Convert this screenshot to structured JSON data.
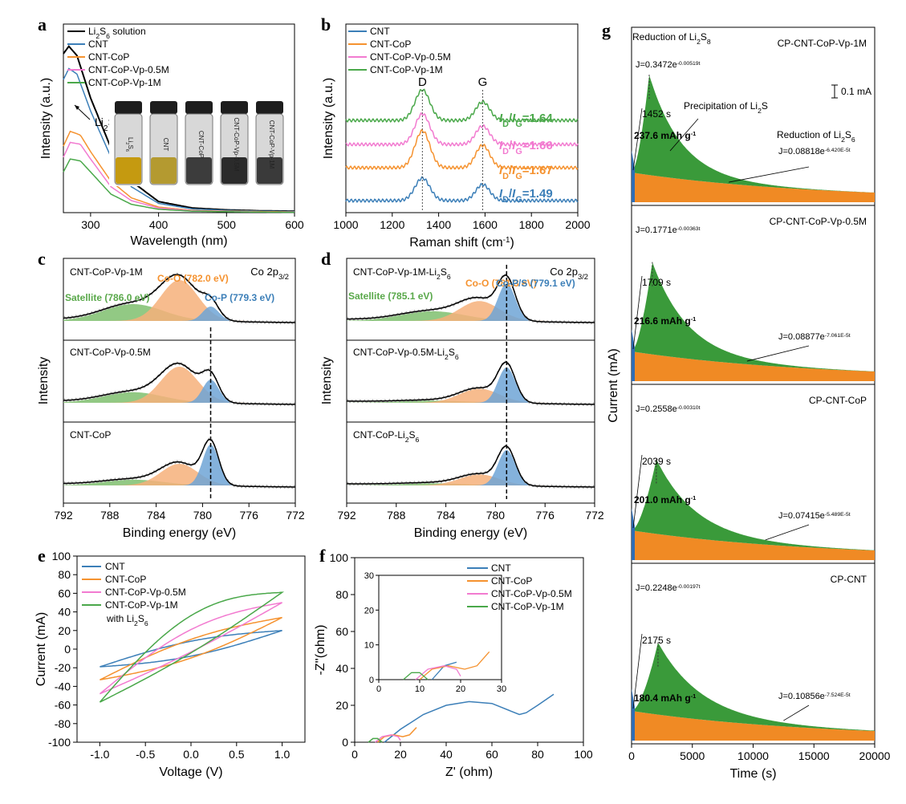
{
  "colors": {
    "black": "#000000",
    "blue": "#3c7fb8",
    "orange": "#f5922f",
    "pink": "#f27bd0",
    "green": "#4aa84a",
    "fill_green": "#3a9a3a",
    "fill_orange": "#f08a24",
    "fill_blue": "#2f6db5",
    "xps_green": "#7fbf6e",
    "xps_orange": "#f6b07a",
    "xps_blue": "#6fa4d6"
  },
  "panels": {
    "a": {
      "letter": "a",
      "xlabel": "Wavelength (nm)",
      "ylabel": "Intensity (a.u.)",
      "xticks": [
        "300",
        "400",
        "500",
        "600"
      ],
      "legend": [
        "Li₂S₆ solution",
        "CNT",
        "CNT-CoP",
        "CNT-CoP-Vp-0.5M",
        "CNT-CoP-Vp-1M"
      ],
      "peak_label": "Li₂S₆",
      "vial_labels": [
        "Li₂S₆",
        "CNT",
        "CNT-CoP",
        "CNT-CoP-Vp-0.5M",
        "CNT-CoP-Vp-1M"
      ]
    },
    "b": {
      "letter": "b",
      "xlabel": "Raman shift (cm⁻¹)",
      "ylabel": "Intensity (a.u.)",
      "xticks": [
        "1000",
        "1200",
        "1400",
        "1600",
        "1800",
        "2000"
      ],
      "legend": [
        "CNT",
        "CNT-CoP",
        "CNT-CoP-Vp-0.5M",
        "CNT-CoP-Vp-1M"
      ],
      "band_D": "D",
      "band_G": "G",
      "ratios": [
        "ID/IG=1.64",
        "ID/IG=1.66",
        "ID/IG=1.67",
        "ID/IG=1.49"
      ]
    },
    "c": {
      "letter": "c",
      "xlabel": "Binding energy (eV)",
      "ylabel": "Intensity",
      "xticks": [
        "792",
        "788",
        "784",
        "780",
        "776",
        "772"
      ],
      "orbital": "Co 2p3/2",
      "samples": [
        "CNT-CoP-Vp-1M",
        "CNT-CoP-Vp-0.5M",
        "CNT-CoP"
      ],
      "peaks": [
        "Satellite (786.0 eV)",
        "Co-O (782.0 eV)",
        "Co-P (779.3 eV)"
      ]
    },
    "d": {
      "letter": "d",
      "xlabel": "Binding energy (eV)",
      "ylabel": "Intensity",
      "xticks": [
        "792",
        "788",
        "784",
        "780",
        "776",
        "772"
      ],
      "orbital": "Co 2p3/2",
      "samples": [
        "CNT-CoP-Vp-1M-Li₂S₆",
        "CNT-CoP-Vp-0.5M-Li₂S₆",
        "CNT-CoP-Li₂S₆"
      ],
      "peaks": [
        "Satellite (785.1 eV)",
        "Co-O (781.3 eV)",
        "Co-P/S (779.1 eV)"
      ]
    },
    "e": {
      "letter": "e",
      "xlabel": "Voltage (V)",
      "ylabel": "Current (mA)",
      "xticks": [
        "-1.0",
        "-0.5",
        "0.0",
        "0.5",
        "1.0"
      ],
      "yticks": [
        "100",
        "80",
        "60",
        "40",
        "20",
        "0",
        "-20",
        "-40",
        "-60",
        "-80",
        "-100"
      ],
      "legend": [
        "CNT",
        "CNT-CoP",
        "CNT-CoP-Vp-0.5M",
        "CNT-CoP-Vp-1M"
      ],
      "note": "with Li₂S₆"
    },
    "f": {
      "letter": "f",
      "xlabel": "Z' (ohm)",
      "ylabel": "-Z''(ohm)",
      "xticks": [
        "0",
        "20",
        "40",
        "60",
        "80",
        "100"
      ],
      "yticks": [
        "100",
        "80",
        "60",
        "40",
        "20",
        "0"
      ],
      "inset_xticks": [
        "0",
        "10",
        "20",
        "30"
      ],
      "inset_yticks": [
        "30",
        "20",
        "10",
        "0"
      ],
      "legend": [
        "CNT",
        "CNT-CoP",
        "CNT-CoP-Vp-0.5M",
        "CNT-CoP-Vp-1M"
      ]
    },
    "g": {
      "letter": "g",
      "xlabel": "Time (s)",
      "ylabel": "Current (mA)",
      "xticks": [
        "0",
        "5000",
        "10000",
        "15000",
        "20000"
      ],
      "scale_bar": "0.1 mA",
      "annot_reduction_s8": "Reduction of Li₂S₈",
      "annot_precip": "Precipitation of Li₂S",
      "annot_reduction_s6": "Reduction of Li₂S₆",
      "subplots": [
        {
          "title": "CP-CNT-CoP-Vp-1M",
          "fit1": "J=0.3472e",
          "fit1_exp": "-0.00519t",
          "time": "1452 s",
          "capacity": "237.6 mAh g",
          "fit2": "J=0.08818e",
          "fit2_exp": "-6.420E-5t"
        },
        {
          "title": "CP-CNT-CoP-Vp-0.5M",
          "fit1": "J=0.1771e",
          "fit1_exp": "-0.00363t",
          "time": "1709 s",
          "capacity": "216.6 mAh g",
          "fit2": "J=0.08877e",
          "fit2_exp": "-7.061E-5t"
        },
        {
          "title": "CP-CNT-CoP",
          "fit1": "J=0.2558e",
          "fit1_exp": "-0.00310t",
          "time": "2039 s",
          "capacity": "201.0 mAh g",
          "fit2": "J=0.07415e",
          "fit2_exp": "-5.489E-5t"
        },
        {
          "title": "CP-CNT",
          "fit1": "J=0.2248e",
          "fit1_exp": "-0.00197t",
          "time": "2175 s",
          "capacity": "180.4 mAh g",
          "fit2": "J=0.10856e",
          "fit2_exp": "-7.524E-5t"
        }
      ],
      "capacity_unit_exp": "-1"
    }
  },
  "chart_data": [
    {
      "panel": "a",
      "type": "line",
      "xlabel": "Wavelength (nm)",
      "ylabel": "Intensity (a.u.)",
      "xlim": [
        260,
        600
      ],
      "series": [
        {
          "name": "Li2S6 solution",
          "x": [
            260,
            268,
            280,
            300,
            330,
            360,
            400,
            450,
            500,
            550,
            600
          ],
          "y": [
            0.86,
            0.9,
            0.85,
            0.62,
            0.35,
            0.17,
            0.06,
            0.025,
            0.015,
            0.01,
            0.008
          ]
        },
        {
          "name": "CNT",
          "x": [
            260,
            268,
            280,
            300,
            330,
            360,
            400,
            450,
            500,
            550,
            600
          ],
          "y": [
            0.72,
            0.78,
            0.75,
            0.55,
            0.3,
            0.14,
            0.05,
            0.02,
            0.012,
            0.008,
            0.006
          ]
        },
        {
          "name": "CNT-CoP",
          "x": [
            260,
            270,
            285,
            300,
            330,
            360,
            400,
            450,
            500,
            550,
            600
          ],
          "y": [
            0.36,
            0.44,
            0.42,
            0.33,
            0.17,
            0.08,
            0.03,
            0.012,
            0.008,
            0.006,
            0.004
          ]
        },
        {
          "name": "CNT-CoP-Vp-0.5M",
          "x": [
            260,
            270,
            285,
            300,
            330,
            360,
            400,
            450,
            500,
            550,
            600
          ],
          "y": [
            0.3,
            0.38,
            0.37,
            0.29,
            0.14,
            0.065,
            0.025,
            0.01,
            0.006,
            0.004,
            0.003
          ]
        },
        {
          "name": "CNT-CoP-Vp-1M",
          "x": [
            260,
            270,
            285,
            300,
            330,
            360,
            400,
            450,
            500,
            550,
            600
          ],
          "y": [
            0.22,
            0.29,
            0.28,
            0.22,
            0.1,
            0.045,
            0.018,
            0.008,
            0.005,
            0.003,
            0.002
          ]
        }
      ]
    },
    {
      "panel": "b",
      "type": "line",
      "xlabel": "Raman shift (cm-1)",
      "ylabel": "Intensity (a.u.)",
      "xlim": [
        1000,
        2000
      ],
      "band_centers": {
        "D": 1330,
        "G": 1590
      },
      "series": [
        {
          "name": "CNT",
          "ID_IG": 1.49
        },
        {
          "name": "CNT-CoP",
          "ID_IG": 1.67
        },
        {
          "name": "CNT-CoP-Vp-0.5M",
          "ID_IG": 1.66
        },
        {
          "name": "CNT-CoP-Vp-1M",
          "ID_IG": 1.64
        }
      ]
    },
    {
      "panel": "c",
      "type": "line",
      "xlabel": "Binding energy (eV)",
      "xlim": [
        792,
        772
      ],
      "reference_line_eV": 779.3,
      "series": [
        {
          "name": "CNT-CoP-Vp-1M",
          "peaks_eV": [
            786.0,
            782.0,
            779.3
          ],
          "heights": [
            0.35,
            0.85,
            0.3
          ]
        },
        {
          "name": "CNT-CoP-Vp-0.5M",
          "peaks_eV": [
            786.0,
            782.0,
            779.3
          ],
          "heights": [
            0.22,
            0.75,
            0.48
          ]
        },
        {
          "name": "CNT-CoP",
          "peaks_eV": [
            786.0,
            782.0,
            779.3
          ],
          "heights": [
            0.12,
            0.45,
            0.85
          ]
        }
      ]
    },
    {
      "panel": "d",
      "type": "line",
      "xlabel": "Binding energy (eV)",
      "xlim": [
        792,
        772
      ],
      "reference_line_eV": 779.1,
      "series": [
        {
          "name": "CNT-CoP-Vp-1M-Li2S6",
          "peaks_eV": [
            785.1,
            781.3,
            779.1
          ],
          "heights": [
            0.22,
            0.45,
            0.85
          ]
        },
        {
          "name": "CNT-CoP-Vp-0.5M-Li2S6",
          "peaks_eV": [
            785.1,
            781.3,
            779.1
          ],
          "heights": [
            0.05,
            0.32,
            0.8
          ]
        },
        {
          "name": "CNT-CoP-Li2S6",
          "peaks_eV": [
            785.1,
            781.3,
            779.1
          ],
          "heights": [
            0.05,
            0.25,
            0.8
          ]
        }
      ]
    },
    {
      "panel": "e",
      "type": "line",
      "xlabel": "Voltage (V)",
      "ylabel": "Current (mA)",
      "xlim": [
        -1.25,
        1.25
      ],
      "ylim": [
        -100,
        100
      ],
      "series": [
        {
          "name": "CNT",
          "vertex_current_mA": [
            -19,
            20
          ]
        },
        {
          "name": "CNT-CoP",
          "vertex_current_mA": [
            -33,
            34
          ]
        },
        {
          "name": "CNT-CoP-Vp-0.5M",
          "vertex_current_mA": [
            -48,
            50
          ]
        },
        {
          "name": "CNT-CoP-Vp-1M",
          "vertex_current_mA": [
            -57,
            61
          ]
        }
      ]
    },
    {
      "panel": "f",
      "type": "scatter",
      "xlabel": "Z' (ohm)",
      "ylabel": "-Z''(ohm)",
      "xlim": [
        0,
        100
      ],
      "ylim": [
        0,
        100
      ],
      "series": [
        {
          "name": "CNT",
          "x": [
            13,
            20,
            30,
            40,
            50,
            60,
            68,
            72,
            75,
            80,
            87
          ],
          "y": [
            0,
            7,
            15,
            20,
            22,
            21,
            17,
            15,
            16,
            20,
            26
          ]
        },
        {
          "name": "CNT-CoP",
          "x": [
            10,
            13,
            17,
            21,
            24,
            27
          ],
          "y": [
            0,
            3,
            4,
            3,
            4,
            8
          ]
        },
        {
          "name": "CNT-CoP-Vp-0.5M",
          "x": [
            9,
            12,
            16,
            19,
            20
          ],
          "y": [
            0,
            3,
            4,
            3,
            1
          ]
        },
        {
          "name": "CNT-CoP-Vp-1M",
          "x": [
            6,
            8,
            10,
            12
          ],
          "y": [
            0,
            2,
            2,
            0
          ]
        }
      ]
    },
    {
      "panel": "g",
      "type": "area",
      "xlabel": "Time (s)",
      "ylabel": "Current (mA)",
      "xlim": [
        0,
        20000
      ],
      "series": [
        {
          "name": "CP-CNT-CoP-Vp-1M",
          "peak_time_s": 1452,
          "capacity_mAh_g": 237.6
        },
        {
          "name": "CP-CNT-CoP-Vp-0.5M",
          "peak_time_s": 1709,
          "capacity_mAh_g": 216.6
        },
        {
          "name": "CP-CNT-CoP",
          "peak_time_s": 2039,
          "capacity_mAh_g": 201.0
        },
        {
          "name": "CP-CNT",
          "peak_time_s": 2175,
          "capacity_mAh_g": 180.4
        }
      ]
    }
  ]
}
